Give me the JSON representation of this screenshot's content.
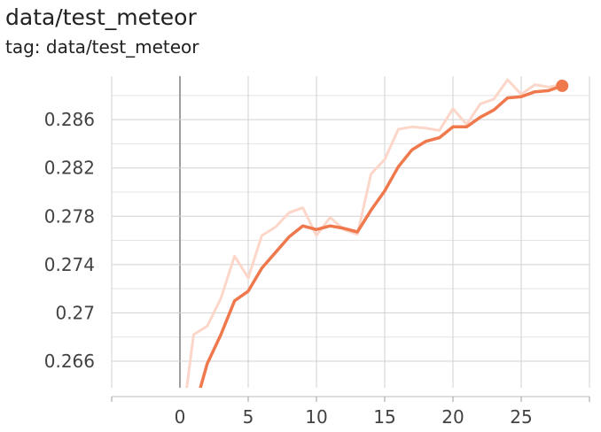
{
  "header": {
    "title": "data/test_meteor",
    "subtitle": "tag: data/test_meteor"
  },
  "colors": {
    "smoothed": "#f0784d",
    "raw": "#fbd6c9",
    "grid": "#d0d0d0",
    "zero_line": "#9e9e9e",
    "tick_text": "#424242"
  },
  "chart_data": {
    "type": "line",
    "title": "data/test_meteor",
    "subtitle": "tag: data/test_meteor",
    "xlabel": "",
    "ylabel": "",
    "xlim": [
      -5,
      30
    ],
    "ylim": [
      0.2638,
      0.2896
    ],
    "x_ticks": [
      0,
      5,
      10,
      15,
      20,
      25
    ],
    "x_tick_labels": [
      "0",
      "5",
      "10",
      "15",
      "20",
      "25"
    ],
    "y_ticks": [
      0.266,
      0.27,
      0.274,
      0.278,
      0.282,
      0.286
    ],
    "y_tick_labels": [
      "0.266",
      "0.27",
      "0.274",
      "0.278",
      "0.282",
      "0.286"
    ],
    "grid": true,
    "series": [
      {
        "role": "raw",
        "x": [
          0.5,
          1,
          2,
          3,
          4,
          5,
          6,
          7,
          8,
          9,
          10,
          11,
          12,
          13,
          14,
          15,
          16,
          17,
          18,
          19,
          20,
          21,
          22,
          23,
          24,
          25,
          26,
          27,
          28
        ],
        "values": [
          0.2638,
          0.2682,
          0.2689,
          0.2712,
          0.2747,
          0.2729,
          0.2764,
          0.2771,
          0.2783,
          0.2787,
          0.2764,
          0.2779,
          0.2769,
          0.2765,
          0.2815,
          0.2827,
          0.2852,
          0.2854,
          0.2853,
          0.2851,
          0.2869,
          0.2856,
          0.2873,
          0.2877,
          0.2893,
          0.2881,
          0.2889,
          0.2887,
          0.2889
        ]
      },
      {
        "role": "smoothed",
        "x": [
          1.5,
          2,
          3,
          4,
          5,
          6,
          7,
          8,
          9,
          10,
          11,
          12,
          13,
          14,
          15,
          16,
          17,
          18,
          19,
          20,
          21,
          22,
          23,
          24,
          25,
          26,
          27,
          28
        ],
        "values": [
          0.2638,
          0.2658,
          0.2682,
          0.271,
          0.2718,
          0.2737,
          0.275,
          0.2763,
          0.2772,
          0.2769,
          0.2772,
          0.277,
          0.2767,
          0.2785,
          0.2801,
          0.2821,
          0.2835,
          0.2842,
          0.2845,
          0.2854,
          0.2854,
          0.2862,
          0.2868,
          0.2878,
          0.2879,
          0.2883,
          0.2884,
          0.2888
        ]
      }
    ]
  }
}
